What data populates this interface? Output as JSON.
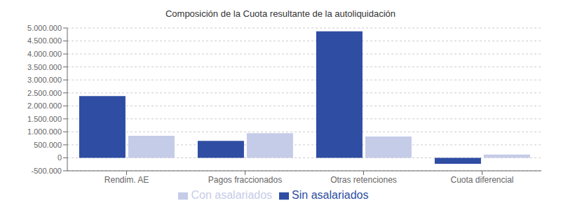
{
  "chart_data": {
    "type": "bar",
    "title": "Composición de la Cuota resultante de la autoliquidación",
    "categories": [
      "Rendim. AE",
      "Pagos fraccionados",
      "Otras retenciones",
      "Cuota diferencial"
    ],
    "series": [
      {
        "name": "Sin asalariados",
        "color": "#2e4da3",
        "values": [
          2380000,
          650000,
          4870000,
          -230000
        ]
      },
      {
        "name": "Con asalariados",
        "color": "#c5cce8",
        "values": [
          850000,
          950000,
          820000,
          130000
        ]
      }
    ],
    "ylim": [
      -500000,
      5000000
    ],
    "yticks": [
      {
        "value": -500000,
        "label": "-500.000"
      },
      0,
      {
        "value": 500000,
        "label": "500.000"
      },
      {
        "value": 1000000,
        "label": "1.000.000"
      },
      {
        "value": 1500000,
        "label": "1.500.000"
      },
      {
        "value": 2000000,
        "label": "2.000.000"
      },
      {
        "value": 2500000,
        "label": "2.500.000"
      },
      {
        "value": 3000000,
        "label": "3.000.000"
      },
      {
        "value": 3500000,
        "label": "3.500.000"
      },
      {
        "value": 4000000,
        "label": "4.000.000"
      },
      {
        "value": 4500000,
        "label": "4.500.000"
      },
      {
        "value": 5000000,
        "label": "5.000.000"
      }
    ],
    "grid": true,
    "legend": "bottom"
  }
}
